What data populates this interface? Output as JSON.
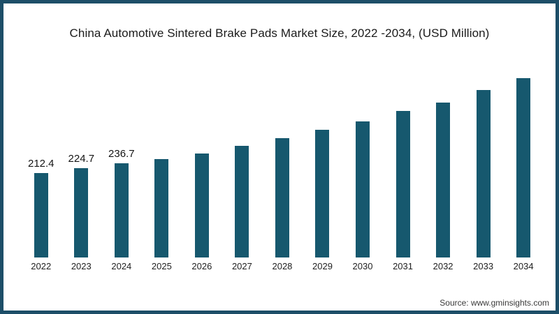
{
  "frame": {
    "border_color": "#1d4e68",
    "background": "#ffffff"
  },
  "chart_data": {
    "type": "bar",
    "title": "China Automotive Sintered Brake Pads Market Size, 2022 -2034, (USD Million)",
    "categories": [
      "2022",
      "2023",
      "2024",
      "2025",
      "2026",
      "2027",
      "2028",
      "2029",
      "2030",
      "2031",
      "2032",
      "2033",
      "2034"
    ],
    "values": [
      212.4,
      224.7,
      236.7,
      247,
      262,
      281,
      300,
      321,
      342,
      368,
      389,
      421,
      451
    ],
    "data_labels": [
      "212.4",
      "224.7",
      "236.7",
      "",
      "",
      "",
      "",
      "",
      "",
      "",
      "",
      "",
      ""
    ],
    "bar_color": "#16586e",
    "xlabel": "",
    "ylabel": "",
    "ylim": [
      0,
      470
    ],
    "grid": false,
    "legend": false
  },
  "source": {
    "text": "Source: www.gminsights.com"
  }
}
